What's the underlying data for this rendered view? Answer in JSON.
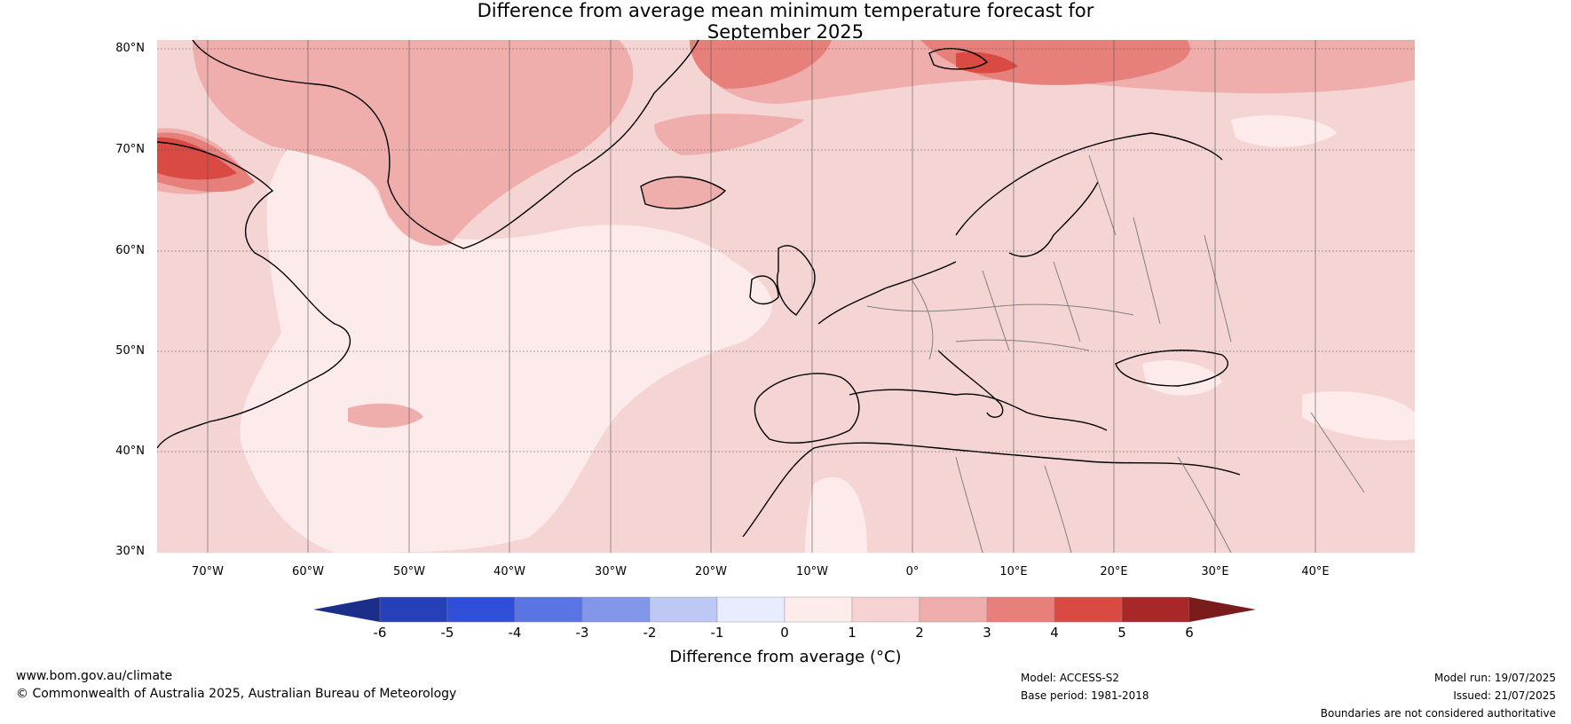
{
  "title": {
    "line1": "Difference from average mean minimum temperature forecast for",
    "line2": "September 2025"
  },
  "map": {
    "lat_labels": [
      "80°N",
      "70°N",
      "60°N",
      "50°N",
      "40°N",
      "30°N"
    ],
    "lon_labels": [
      "70°W",
      "60°W",
      "50°W",
      "40°W",
      "30°W",
      "20°W",
      "10°W",
      "0°",
      "10°E",
      "20°E",
      "30°E",
      "40°E"
    ],
    "background_colour": "#f5d4d4"
  },
  "colorbar": {
    "ticks": [
      "-6",
      "-5",
      "-4",
      "-3",
      "-2",
      "-1",
      "0",
      "1",
      "2",
      "3",
      "4",
      "5",
      "6"
    ],
    "colours": [
      "#1b2e8a",
      "#2640b8",
      "#2f4fd8",
      "#5a74e4",
      "#8296ea",
      "#bec8f4",
      "#e8ecfc",
      "#fdeceb",
      "#f6d3d2",
      "#efaeac",
      "#e7807b",
      "#d84a42",
      "#a8282a",
      "#7a1c1c"
    ],
    "label": "Difference from average (°C)"
  },
  "footer": {
    "website": "www.bom.gov.au/climate",
    "copyright": "© Commonwealth of Australia 2025, Australian Bureau of Meteorology",
    "model": "Model: ACCESS-S2",
    "base_period": "Base period: 1981-2018",
    "model_run": "Model run: 19/07/2025",
    "issued": "Issued: 21/07/2025",
    "disclaimer": "Boundaries are not considered authoritative"
  }
}
